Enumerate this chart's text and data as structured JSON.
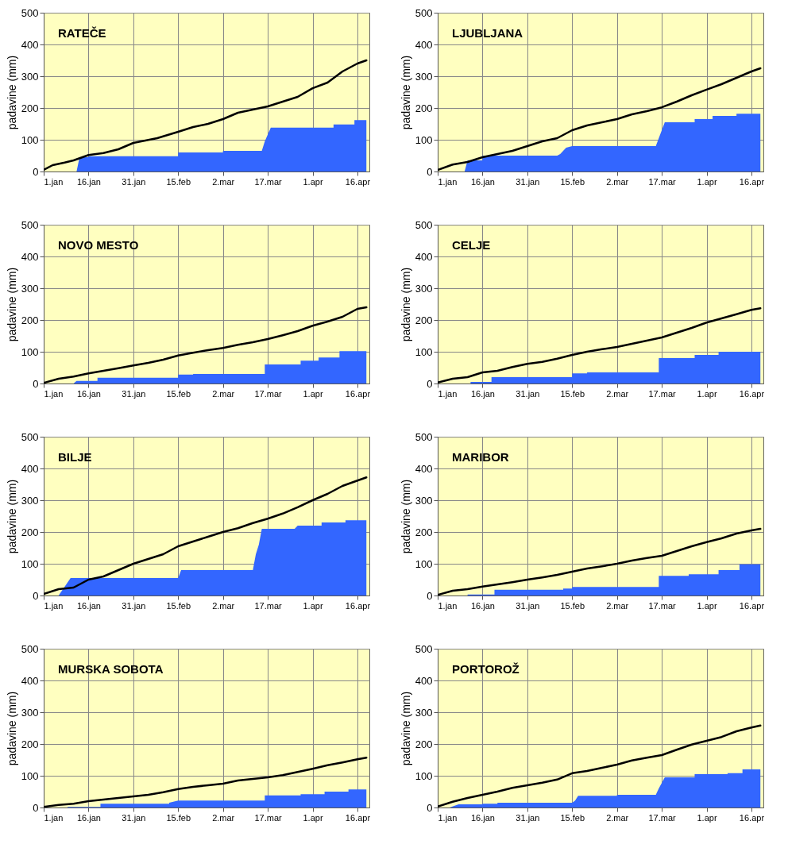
{
  "chart_data": [
    {
      "type": "line",
      "title": "RATEČE",
      "ylabel": "padavine (mm)",
      "grid": true,
      "xlim": [
        "--01-01",
        "--04-20"
      ],
      "ylim": [
        0,
        500
      ],
      "yticks": [
        0,
        100,
        200,
        300,
        400,
        500
      ],
      "xticks": [
        {
          "value": "--01-01",
          "label": "1.jan"
        },
        {
          "value": "--01-16",
          "label": "16.jan"
        },
        {
          "value": "--01-31",
          "label": "31.jan"
        },
        {
          "value": "--02-15",
          "label": "15.feb"
        },
        {
          "value": "--03-02",
          "label": "2.mar"
        },
        {
          "value": "--03-17",
          "label": "17.mar"
        },
        {
          "value": "--04-01",
          "label": "1.apr"
        },
        {
          "value": "--04-16",
          "label": "16.apr"
        }
      ],
      "x": [
        "--01-01",
        "--01-04",
        "--01-08",
        "--01-11",
        "--01-16",
        "--01-21",
        "--01-26",
        "--01-31",
        "--02-08",
        "--02-15",
        "--02-20",
        "--02-25",
        "--03-02",
        "--03-07",
        "--03-12",
        "--03-17",
        "--03-22",
        "--03-27",
        "--04-01",
        "--04-06",
        "--04-11",
        "--04-16",
        "--04-19"
      ],
      "series": [
        {
          "type": "area",
          "color": "#3366ff",
          "x": [
            "--01-12",
            "--01-13",
            "--01-16",
            "--01-16",
            "--02-15",
            "--02-15",
            "--03-02",
            "--03-02",
            "--03-15",
            "--03-16",
            "--03-18",
            "--04-08",
            "--04-08",
            "--04-15",
            "--04-15",
            "--04-19"
          ],
          "values": [
            0,
            45,
            45,
            48,
            48,
            60,
            60,
            65,
            65,
            95,
            138,
            138,
            148,
            148,
            162,
            162
          ]
        },
        {
          "type": "line",
          "color": "#000000",
          "values": [
            5,
            20,
            28,
            35,
            52,
            58,
            70,
            90,
            105,
            125,
            140,
            150,
            165,
            185,
            195,
            205,
            220,
            235,
            262,
            280,
            315,
            340,
            350
          ]
        }
      ]
    },
    {
      "type": "line",
      "title": "LJUBLJANA",
      "ylabel": "padavine (mm)",
      "grid": true,
      "xlim": [
        "--01-01",
        "--04-20"
      ],
      "ylim": [
        0,
        500
      ],
      "yticks": [
        0,
        100,
        200,
        300,
        400,
        500
      ],
      "xticks": [
        {
          "value": "--01-01",
          "label": "1.jan"
        },
        {
          "value": "--01-16",
          "label": "16.jan"
        },
        {
          "value": "--01-31",
          "label": "31.jan"
        },
        {
          "value": "--02-15",
          "label": "15.feb"
        },
        {
          "value": "--03-02",
          "label": "2.mar"
        },
        {
          "value": "--03-17",
          "label": "17.mar"
        },
        {
          "value": "--04-01",
          "label": "1.apr"
        },
        {
          "value": "--04-16",
          "label": "16.apr"
        }
      ],
      "x": [
        "--01-01",
        "--01-06",
        "--01-11",
        "--01-16",
        "--01-21",
        "--01-26",
        "--01-31",
        "--02-05",
        "--02-10",
        "--02-15",
        "--02-20",
        "--02-25",
        "--03-02",
        "--03-07",
        "--03-12",
        "--03-17",
        "--03-22",
        "--03-27",
        "--04-01",
        "--04-06",
        "--04-11",
        "--04-16",
        "--04-19"
      ],
      "series": [
        {
          "type": "area",
          "color": "#3366ff",
          "x": [
            "--01-10",
            "--01-11",
            "--01-16",
            "--01-16",
            "--02-10",
            "--02-11",
            "--02-13",
            "--02-15",
            "--03-15",
            "--03-16",
            "--03-18",
            "--03-28",
            "--03-28",
            "--04-03",
            "--04-03",
            "--04-11",
            "--04-11",
            "--04-19"
          ],
          "values": [
            0,
            35,
            35,
            50,
            50,
            55,
            75,
            80,
            80,
            105,
            155,
            155,
            165,
            165,
            175,
            175,
            182,
            182
          ]
        },
        {
          "type": "line",
          "color": "#000000",
          "values": [
            5,
            22,
            30,
            45,
            55,
            65,
            80,
            95,
            105,
            130,
            145,
            155,
            165,
            180,
            190,
            202,
            220,
            240,
            258,
            275,
            295,
            315,
            325
          ]
        }
      ]
    },
    {
      "type": "line",
      "title": "NOVO MESTO",
      "ylabel": "padavine (mm)",
      "grid": true,
      "xlim": [
        "--01-01",
        "--04-20"
      ],
      "ylim": [
        0,
        500
      ],
      "yticks": [
        0,
        100,
        200,
        300,
        400,
        500
      ],
      "xticks": [
        {
          "value": "--01-01",
          "label": "1.jan"
        },
        {
          "value": "--01-16",
          "label": "16.jan"
        },
        {
          "value": "--01-31",
          "label": "31.jan"
        },
        {
          "value": "--02-15",
          "label": "15.feb"
        },
        {
          "value": "--03-02",
          "label": "2.mar"
        },
        {
          "value": "--03-17",
          "label": "17.mar"
        },
        {
          "value": "--04-01",
          "label": "1.apr"
        },
        {
          "value": "--04-16",
          "label": "16.apr"
        }
      ],
      "x": [
        "--01-01",
        "--01-06",
        "--01-11",
        "--01-16",
        "--01-21",
        "--01-26",
        "--01-31",
        "--02-05",
        "--02-10",
        "--02-15",
        "--02-20",
        "--02-25",
        "--03-02",
        "--03-07",
        "--03-12",
        "--03-17",
        "--03-22",
        "--03-27",
        "--04-01",
        "--04-06",
        "--04-11",
        "--04-16",
        "--04-19"
      ],
      "series": [
        {
          "type": "area",
          "color": "#3366ff",
          "x": [
            "--01-11",
            "--01-12",
            "--01-19",
            "--01-19",
            "--02-15",
            "--02-15",
            "--02-20",
            "--02-20",
            "--03-16",
            "--03-16",
            "--03-28",
            "--03-28",
            "--04-03",
            "--04-03",
            "--04-10",
            "--04-10",
            "--04-19"
          ],
          "values": [
            0,
            8,
            8,
            18,
            18,
            28,
            28,
            30,
            30,
            60,
            60,
            72,
            72,
            82,
            82,
            102,
            102
          ]
        },
        {
          "type": "line",
          "color": "#000000",
          "values": [
            2,
            15,
            22,
            32,
            40,
            48,
            57,
            65,
            75,
            88,
            97,
            105,
            112,
            122,
            130,
            140,
            152,
            165,
            182,
            195,
            210,
            235,
            240
          ]
        }
      ]
    },
    {
      "type": "line",
      "title": "CELJE",
      "ylabel": "padavine (mm)",
      "grid": true,
      "xlim": [
        "--01-01",
        "--04-20"
      ],
      "ylim": [
        0,
        500
      ],
      "yticks": [
        0,
        100,
        200,
        300,
        400,
        500
      ],
      "xticks": [
        {
          "value": "--01-01",
          "label": "1.jan"
        },
        {
          "value": "--01-16",
          "label": "16.jan"
        },
        {
          "value": "--01-31",
          "label": "31.jan"
        },
        {
          "value": "--02-15",
          "label": "15.feb"
        },
        {
          "value": "--03-02",
          "label": "2.mar"
        },
        {
          "value": "--03-17",
          "label": "17.mar"
        },
        {
          "value": "--04-01",
          "label": "1.apr"
        },
        {
          "value": "--04-16",
          "label": "16.apr"
        }
      ],
      "x": [
        "--01-01",
        "--01-06",
        "--01-11",
        "--01-16",
        "--01-21",
        "--01-26",
        "--01-31",
        "--02-05",
        "--02-10",
        "--02-15",
        "--02-20",
        "--02-25",
        "--03-02",
        "--03-07",
        "--03-12",
        "--03-17",
        "--03-22",
        "--03-27",
        "--04-01",
        "--04-06",
        "--04-11",
        "--04-16",
        "--04-19"
      ],
      "series": [
        {
          "type": "area",
          "color": "#3366ff",
          "x": [
            "--01-12",
            "--01-12",
            "--01-19",
            "--01-19",
            "--02-15",
            "--02-15",
            "--02-20",
            "--02-20",
            "--03-16",
            "--03-16",
            "--03-28",
            "--03-28",
            "--04-05",
            "--04-05",
            "--04-19"
          ],
          "values": [
            0,
            5,
            5,
            20,
            20,
            32,
            32,
            35,
            35,
            80,
            80,
            90,
            90,
            100,
            100
          ]
        },
        {
          "type": "line",
          "color": "#000000",
          "values": [
            3,
            15,
            20,
            35,
            40,
            52,
            62,
            68,
            78,
            90,
            100,
            108,
            115,
            125,
            135,
            145,
            160,
            175,
            192,
            205,
            218,
            232,
            237
          ]
        }
      ]
    },
    {
      "type": "line",
      "title": "BILJE",
      "ylabel": "padavine (mm)",
      "grid": true,
      "xlim": [
        "--01-01",
        "--04-20"
      ],
      "ylim": [
        0,
        500
      ],
      "yticks": [
        0,
        100,
        200,
        300,
        400,
        500
      ],
      "xticks": [
        {
          "value": "--01-01",
          "label": "1.jan"
        },
        {
          "value": "--01-16",
          "label": "16.jan"
        },
        {
          "value": "--01-31",
          "label": "31.jan"
        },
        {
          "value": "--02-15",
          "label": "15.feb"
        },
        {
          "value": "--03-02",
          "label": "2.mar"
        },
        {
          "value": "--03-17",
          "label": "17.mar"
        },
        {
          "value": "--04-01",
          "label": "1.apr"
        },
        {
          "value": "--04-16",
          "label": "16.apr"
        }
      ],
      "x": [
        "--01-01",
        "--01-06",
        "--01-11",
        "--01-16",
        "--01-21",
        "--01-26",
        "--01-31",
        "--02-05",
        "--02-10",
        "--02-15",
        "--02-20",
        "--02-25",
        "--03-02",
        "--03-07",
        "--03-12",
        "--03-17",
        "--03-22",
        "--03-27",
        "--04-01",
        "--04-06",
        "--04-11",
        "--04-16",
        "--04-19"
      ],
      "series": [
        {
          "type": "area",
          "color": "#3366ff",
          "x": [
            "--01-06",
            "--01-10",
            "--02-15",
            "--02-16",
            "--03-12",
            "--03-13",
            "--03-14",
            "--03-15",
            "--03-26",
            "--03-27",
            "--04-04",
            "--04-04",
            "--04-12",
            "--04-12",
            "--04-19"
          ],
          "values": [
            0,
            55,
            55,
            80,
            80,
            130,
            160,
            210,
            210,
            220,
            220,
            230,
            230,
            237,
            237
          ]
        },
        {
          "type": "line",
          "color": "#000000",
          "values": [
            5,
            20,
            25,
            50,
            60,
            80,
            100,
            115,
            130,
            155,
            170,
            185,
            200,
            212,
            228,
            242,
            258,
            278,
            300,
            320,
            345,
            362,
            372
          ]
        }
      ]
    },
    {
      "type": "line",
      "title": "MARIBOR",
      "ylabel": "padavine (mm)",
      "grid": true,
      "xlim": [
        "--01-01",
        "--04-20"
      ],
      "ylim": [
        0,
        500
      ],
      "yticks": [
        0,
        100,
        200,
        300,
        400,
        500
      ],
      "xticks": [
        {
          "value": "--01-01",
          "label": "1.jan"
        },
        {
          "value": "--01-16",
          "label": "16.jan"
        },
        {
          "value": "--01-31",
          "label": "31.jan"
        },
        {
          "value": "--02-15",
          "label": "15.feb"
        },
        {
          "value": "--03-02",
          "label": "2.mar"
        },
        {
          "value": "--03-17",
          "label": "17.mar"
        },
        {
          "value": "--04-01",
          "label": "1.apr"
        },
        {
          "value": "--04-16",
          "label": "16.apr"
        }
      ],
      "x": [
        "--01-01",
        "--01-06",
        "--01-11",
        "--01-16",
        "--01-21",
        "--01-26",
        "--01-31",
        "--02-05",
        "--02-10",
        "--02-15",
        "--02-20",
        "--02-25",
        "--03-02",
        "--03-07",
        "--03-12",
        "--03-17",
        "--03-22",
        "--03-27",
        "--04-01",
        "--04-06",
        "--04-11",
        "--04-16",
        "--04-19"
      ],
      "series": [
        {
          "type": "area",
          "color": "#3366ff",
          "x": [
            "--01-11",
            "--01-11",
            "--01-20",
            "--01-20",
            "--02-12",
            "--02-12",
            "--02-15",
            "--02-15",
            "--03-16",
            "--03-16",
            "--03-26",
            "--03-26",
            "--04-05",
            "--04-05",
            "--04-12",
            "--04-12",
            "--04-19"
          ],
          "values": [
            0,
            3,
            3,
            18,
            18,
            22,
            22,
            27,
            27,
            62,
            62,
            67,
            67,
            80,
            80,
            98,
            98
          ]
        },
        {
          "type": "line",
          "color": "#000000",
          "values": [
            2,
            15,
            20,
            28,
            35,
            42,
            50,
            57,
            65,
            75,
            85,
            92,
            100,
            110,
            118,
            125,
            140,
            155,
            168,
            180,
            195,
            205,
            210
          ]
        }
      ]
    },
    {
      "type": "line",
      "title": "MURSKA SOBOTA",
      "ylabel": "padavine (mm)",
      "grid": true,
      "xlim": [
        "--01-01",
        "--04-20"
      ],
      "ylim": [
        0,
        500
      ],
      "yticks": [
        0,
        100,
        200,
        300,
        400,
        500
      ],
      "xticks": [
        {
          "value": "--01-01",
          "label": "1.jan"
        },
        {
          "value": "--01-16",
          "label": "16.jan"
        },
        {
          "value": "--01-31",
          "label": "31.jan"
        },
        {
          "value": "--02-15",
          "label": "15.feb"
        },
        {
          "value": "--03-02",
          "label": "2.mar"
        },
        {
          "value": "--03-17",
          "label": "17.mar"
        },
        {
          "value": "--04-01",
          "label": "1.apr"
        },
        {
          "value": "--04-16",
          "label": "16.apr"
        }
      ],
      "x": [
        "--01-01",
        "--01-06",
        "--01-11",
        "--01-16",
        "--01-21",
        "--01-26",
        "--01-31",
        "--02-05",
        "--02-10",
        "--02-15",
        "--02-20",
        "--02-25",
        "--03-02",
        "--03-07",
        "--03-12",
        "--03-17",
        "--03-22",
        "--03-27",
        "--04-01",
        "--04-06",
        "--04-11",
        "--04-16",
        "--04-19"
      ],
      "series": [
        {
          "type": "area",
          "color": "#3366ff",
          "x": [
            "--01-09",
            "--01-09",
            "--01-20",
            "--01-20",
            "--02-12",
            "--02-12",
            "--02-15",
            "--03-16",
            "--03-16",
            "--03-28",
            "--03-28",
            "--04-05",
            "--04-05",
            "--04-13",
            "--04-13",
            "--04-19"
          ],
          "values": [
            0,
            2,
            2,
            12,
            12,
            15,
            22,
            22,
            38,
            38,
            42,
            42,
            50,
            50,
            57,
            57
          ]
        },
        {
          "type": "line",
          "color": "#000000",
          "values": [
            2,
            8,
            12,
            20,
            25,
            30,
            35,
            40,
            48,
            58,
            65,
            70,
            75,
            85,
            90,
            95,
            102,
            112,
            122,
            133,
            142,
            152,
            157
          ]
        }
      ]
    },
    {
      "type": "line",
      "title": "PORTOROŽ",
      "ylabel": "padavine (mm)",
      "grid": true,
      "xlim": [
        "--01-01",
        "--04-20"
      ],
      "ylim": [
        0,
        500
      ],
      "yticks": [
        0,
        100,
        200,
        300,
        400,
        500
      ],
      "xticks": [
        {
          "value": "--01-01",
          "label": "1.jan"
        },
        {
          "value": "--01-16",
          "label": "16.jan"
        },
        {
          "value": "--01-31",
          "label": "31.jan"
        },
        {
          "value": "--02-15",
          "label": "15.feb"
        },
        {
          "value": "--03-02",
          "label": "2.mar"
        },
        {
          "value": "--03-17",
          "label": "17.mar"
        },
        {
          "value": "--04-01",
          "label": "1.apr"
        },
        {
          "value": "--04-16",
          "label": "16.apr"
        }
      ],
      "x": [
        "--01-01",
        "--01-06",
        "--01-11",
        "--01-16",
        "--01-21",
        "--01-26",
        "--01-31",
        "--02-05",
        "--02-10",
        "--02-15",
        "--02-20",
        "--02-25",
        "--03-02",
        "--03-07",
        "--03-12",
        "--03-17",
        "--03-22",
        "--03-27",
        "--04-01",
        "--04-06",
        "--04-11",
        "--04-16",
        "--04-19"
      ],
      "series": [
        {
          "type": "area",
          "color": "#3366ff",
          "x": [
            "--01-05",
            "--01-08",
            "--01-16",
            "--01-16",
            "--01-21",
            "--01-21",
            "--02-15",
            "--02-16",
            "--02-17",
            "--03-02",
            "--03-02",
            "--03-15",
            "--03-16",
            "--03-18",
            "--03-28",
            "--03-28",
            "--04-08",
            "--04-08",
            "--04-13",
            "--04-13",
            "--04-19"
          ],
          "values": [
            0,
            10,
            10,
            12,
            12,
            15,
            15,
            22,
            37,
            37,
            40,
            40,
            60,
            95,
            95,
            105,
            105,
            108,
            108,
            120,
            120
          ]
        },
        {
          "type": "line",
          "color": "#000000",
          "values": [
            3,
            18,
            30,
            40,
            50,
            62,
            70,
            78,
            88,
            108,
            115,
            125,
            135,
            148,
            157,
            165,
            182,
            198,
            210,
            222,
            240,
            252,
            258
          ]
        }
      ]
    }
  ]
}
